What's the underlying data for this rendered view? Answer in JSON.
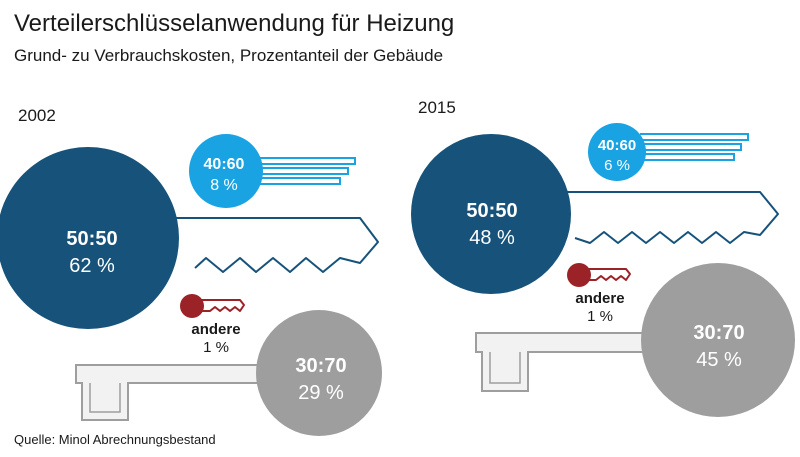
{
  "title": "Verteilerschlüsselanwendung für Heizung",
  "subtitle": "Grund- zu Verbrauchskosten, Prozentanteil der Gebäude",
  "source": "Quelle: Minol Abrechnungsbestand",
  "colors": {
    "s5050": "#16527a",
    "s4060": "#1aa3e3",
    "s3070": "#9e9e9e",
    "andere": "#9b2226",
    "light_gray": "#f2f2f2"
  },
  "chart_data": [
    {
      "type": "bubble",
      "year": "2002",
      "series": [
        {
          "name": "50:50",
          "value": 62,
          "label": "62 %"
        },
        {
          "name": "40:60",
          "value": 8,
          "label": "8 %"
        },
        {
          "name": "30:70",
          "value": 29,
          "label": "29 %"
        },
        {
          "name": "andere",
          "value": 1,
          "label": "1 %"
        }
      ]
    },
    {
      "type": "bubble",
      "year": "2015",
      "series": [
        {
          "name": "50:50",
          "value": 48,
          "label": "48 %"
        },
        {
          "name": "40:60",
          "value": 6,
          "label": "6 %"
        },
        {
          "name": "30:70",
          "value": 45,
          "label": "45 %"
        },
        {
          "name": "andere",
          "value": 1,
          "label": "1 %"
        }
      ]
    }
  ]
}
